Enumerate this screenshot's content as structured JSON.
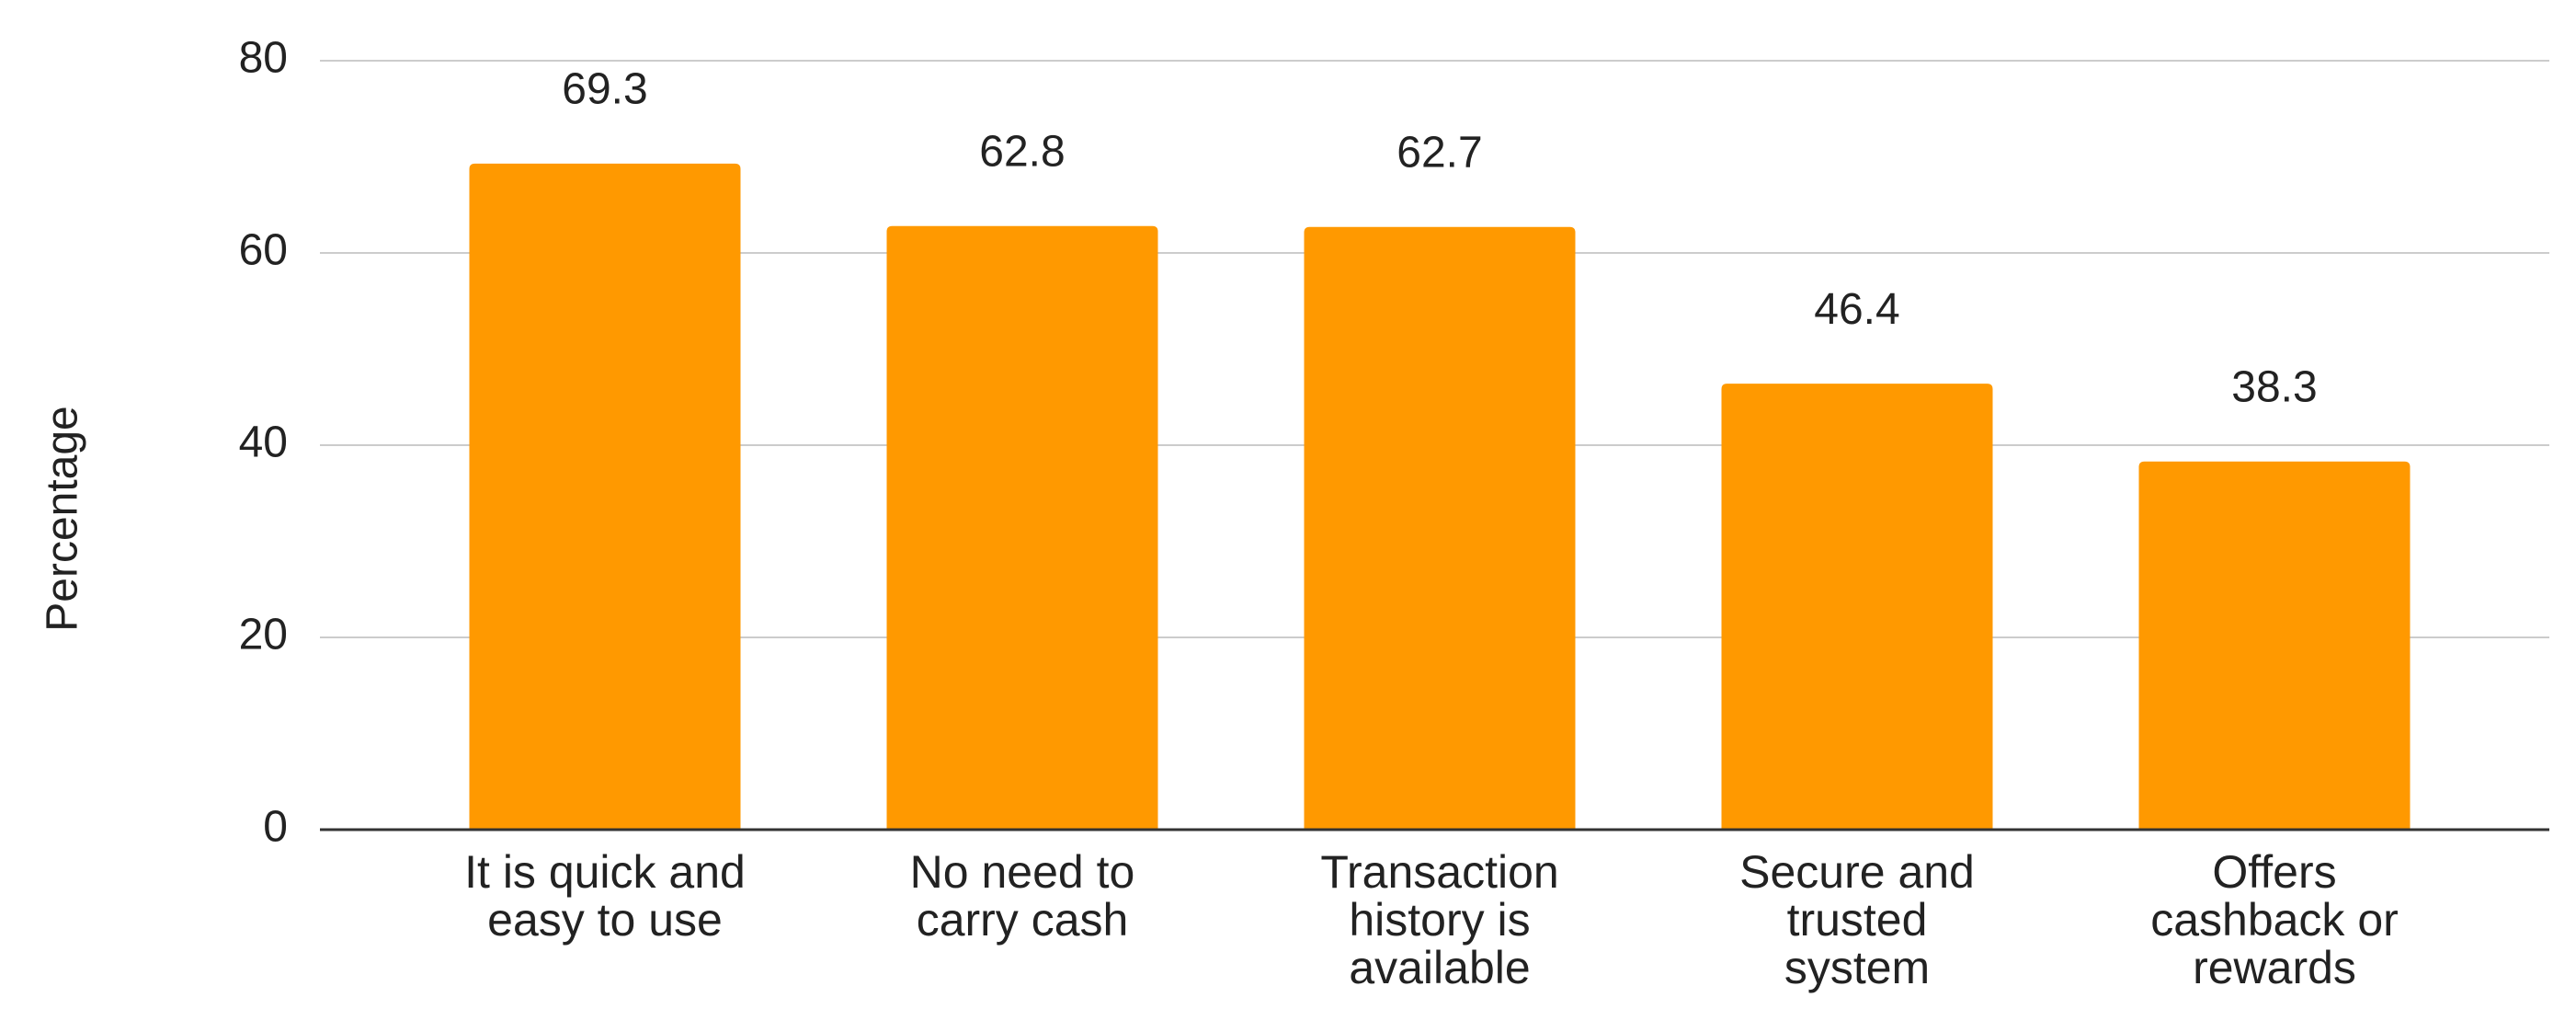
{
  "chart_data": {
    "type": "bar",
    "y_label": "Percentage",
    "categories": [
      "It is quick and\neasy to use",
      "No need to\ncarry cash",
      "Transaction\nhistory is\navailable",
      "Secure and\ntrusted\nsystem",
      "Offers\ncashback or\nrewards"
    ],
    "values": [
      69.3,
      62.8,
      62.7,
      46.4,
      38.3
    ],
    "color": "#ff9900",
    "ylim": [
      0,
      80
    ],
    "yticks": [
      0,
      20,
      40,
      60,
      80
    ],
    "grid": true
  }
}
